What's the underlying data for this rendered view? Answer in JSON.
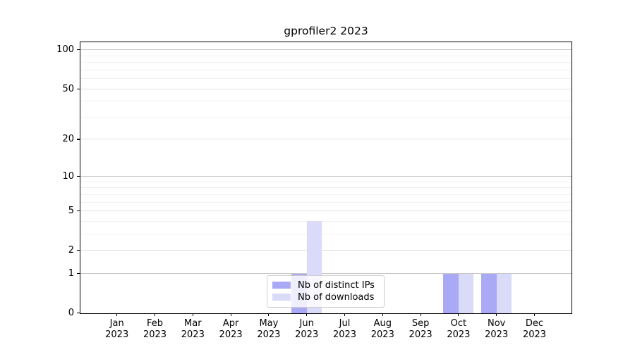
{
  "chart_data": {
    "type": "bar",
    "title": "gprofiler2 2023",
    "x_categories": [
      "Jan",
      "Feb",
      "Mar",
      "Apr",
      "May",
      "Jun",
      "Jul",
      "Aug",
      "Sep",
      "Oct",
      "Nov",
      "Dec"
    ],
    "x_sublabel": "2023",
    "series": [
      {
        "name": "Nb of distinct IPs",
        "color": "#a9a9f5",
        "values": [
          0,
          0,
          0,
          0,
          0,
          1,
          0,
          0,
          0,
          1,
          1,
          0
        ]
      },
      {
        "name": "Nb of downloads",
        "color": "#dadaf9",
        "values": [
          0,
          0,
          0,
          0,
          0,
          4,
          0,
          0,
          0,
          1,
          1,
          0
        ]
      }
    ],
    "yscale": "log1p",
    "ylim": [
      0,
      115
    ],
    "yticks": [
      0,
      1,
      2,
      5,
      10,
      20,
      50,
      100
    ],
    "decade_gridlines": [
      1,
      10,
      100
    ],
    "labeled_gridlines": [
      2,
      5,
      20,
      50
    ],
    "minor_gridlines": [
      3,
      4,
      6,
      7,
      8,
      9,
      30,
      40,
      60,
      70,
      80,
      90
    ],
    "grid": true,
    "legend_position": "lower center",
    "colors": {
      "grid_decade": "#c8c8c8",
      "grid_labeled": "#e2e2e2",
      "grid_minor": "#f1f1f1",
      "axis": "#000000",
      "legend_border": "#cccccc",
      "text": "#000000"
    }
  }
}
